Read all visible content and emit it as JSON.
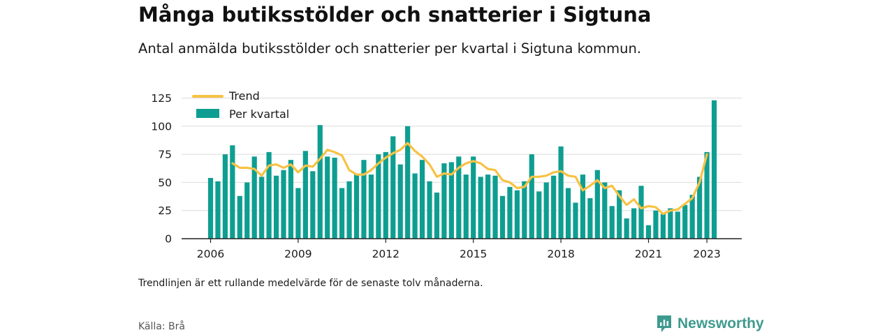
{
  "header": {
    "title": "Många butiksstölder och snatterier i Sigtuna",
    "subtitle": "Antal anmälda butiksstölder och snatterier per kvartal i Sigtuna kommun."
  },
  "footer": {
    "note": "Trendlinjen är ett rullande medelvärde för de senaste tolv månaderna.",
    "source": "Källa: Brå",
    "brand": "Newsworthy",
    "brand_icon": "newsworthy-logo-icon"
  },
  "colors": {
    "bar": "#0e9e91",
    "trend": "#f7c244",
    "grid": "#dcdcdc",
    "axis": "#222222"
  },
  "chart_data": {
    "type": "bar",
    "x_start": "2006 Q1",
    "x_ticks": [
      {
        "label": "2006",
        "index": 0
      },
      {
        "label": "2009",
        "index": 12
      },
      {
        "label": "2012",
        "index": 24
      },
      {
        "label": "2015",
        "index": 36
      },
      {
        "label": "2018",
        "index": 48
      },
      {
        "label": "2021",
        "index": 60
      },
      {
        "label": "2023",
        "index": 68
      }
    ],
    "ylim": [
      0,
      130
    ],
    "y_ticks": [
      0,
      25,
      50,
      75,
      100,
      125
    ],
    "grid": true,
    "legend_position": "top-left",
    "series": [
      {
        "name": "Per kvartal",
        "type": "bar",
        "values": [
          54,
          51,
          75,
          83,
          38,
          50,
          73,
          55,
          77,
          56,
          61,
          70,
          45,
          78,
          60,
          101,
          73,
          72,
          45,
          51,
          57,
          70,
          57,
          75,
          77,
          91,
          66,
          100,
          58,
          70,
          51,
          41,
          67,
          68,
          73,
          57,
          73,
          55,
          57,
          56,
          38,
          46,
          43,
          51,
          75,
          42,
          50,
          56,
          82,
          45,
          32,
          57,
          36,
          61,
          50,
          29,
          43,
          18,
          27,
          47,
          12,
          25,
          22,
          27,
          24,
          30,
          39,
          55,
          77,
          123
        ]
      },
      {
        "name": "Trend",
        "type": "line",
        "start_index": 3,
        "values": [
          67,
          63,
          63,
          62,
          56,
          65,
          66,
          63,
          66,
          59,
          65,
          64,
          71,
          79,
          77,
          74,
          61,
          57,
          57,
          61,
          67,
          72,
          76,
          79,
          85,
          78,
          73,
          66,
          55,
          58,
          57,
          63,
          67,
          69,
          67,
          62,
          61,
          52,
          50,
          45,
          46,
          55,
          55,
          56,
          59,
          60,
          56,
          55,
          43,
          47,
          52,
          45,
          47,
          38,
          30,
          35,
          27,
          29,
          28,
          22,
          25,
          26,
          31,
          36,
          50,
          75
        ]
      }
    ]
  }
}
